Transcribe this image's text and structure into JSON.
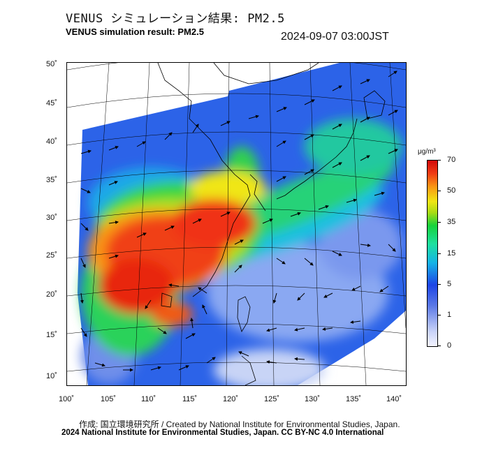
{
  "title_ja": "VENUS シミュレーション結果: PM2.5",
  "title_en": "VENUS simulation result: PM2.5",
  "timestamp": "2024-09-07 03:00JST",
  "map": {
    "lat_labels": [
      "50˚",
      "45˚",
      "40˚",
      "35˚",
      "30˚",
      "25˚",
      "20˚",
      "15˚",
      "10˚"
    ],
    "lon_labels": [
      "100˚",
      "105˚",
      "110˚",
      "115˚",
      "120˚",
      "125˚",
      "130˚",
      "135˚",
      "140˚"
    ]
  },
  "colorbar": {
    "unit": "μg/m³",
    "labels": [
      "70",
      "50",
      "35",
      "15",
      "5",
      "1",
      "0"
    ]
  },
  "footer": {
    "credit": "作成: 国立環境研究所 / Created by National Institute for Environmental Studies, Japan.",
    "copyright": "2024 National Institute for Environmental Studies, Japan. CC BY-NC 4.0 International"
  }
}
